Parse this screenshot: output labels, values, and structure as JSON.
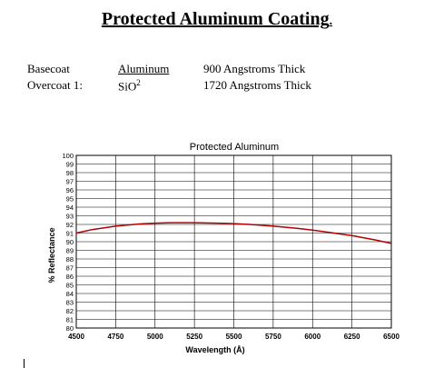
{
  "document": {
    "title": "Protected Aluminum Coating",
    "title_suffix": ".",
    "specs": [
      {
        "label": "Basecoat",
        "material": "Aluminum",
        "thickness": "900 Angstroms Thick"
      },
      {
        "label": "Overcoat 1:",
        "material": "SiO",
        "material_sup": "2",
        "thickness": "1720 Angstroms Thick"
      }
    ]
  },
  "chart_data": {
    "type": "line",
    "title": "Protected Aluminum",
    "xlabel": "Wavelength (Å)",
    "ylabel": "% Reflectance",
    "xlim": [
      4500,
      6500
    ],
    "ylim": [
      80,
      100
    ],
    "x_ticks": [
      4500,
      4750,
      5000,
      5250,
      5500,
      5750,
      6000,
      6250,
      6500
    ],
    "y_ticks": [
      80,
      81,
      82,
      83,
      84,
      85,
      86,
      87,
      88,
      89,
      90,
      91,
      92,
      93,
      94,
      95,
      96,
      97,
      98,
      99,
      100
    ],
    "grid": true,
    "series": [
      {
        "color": "#b00000",
        "x": [
          4500,
          4600,
          4750,
          4900,
          5000,
          5100,
          5250,
          5400,
          5500,
          5600,
          5750,
          5900,
          6000,
          6100,
          6250,
          6400,
          6500
        ],
        "values": [
          91.0,
          91.4,
          91.8,
          92.05,
          92.15,
          92.2,
          92.2,
          92.15,
          92.1,
          92.0,
          91.8,
          91.55,
          91.35,
          91.1,
          90.7,
          90.2,
          89.8
        ]
      }
    ]
  }
}
